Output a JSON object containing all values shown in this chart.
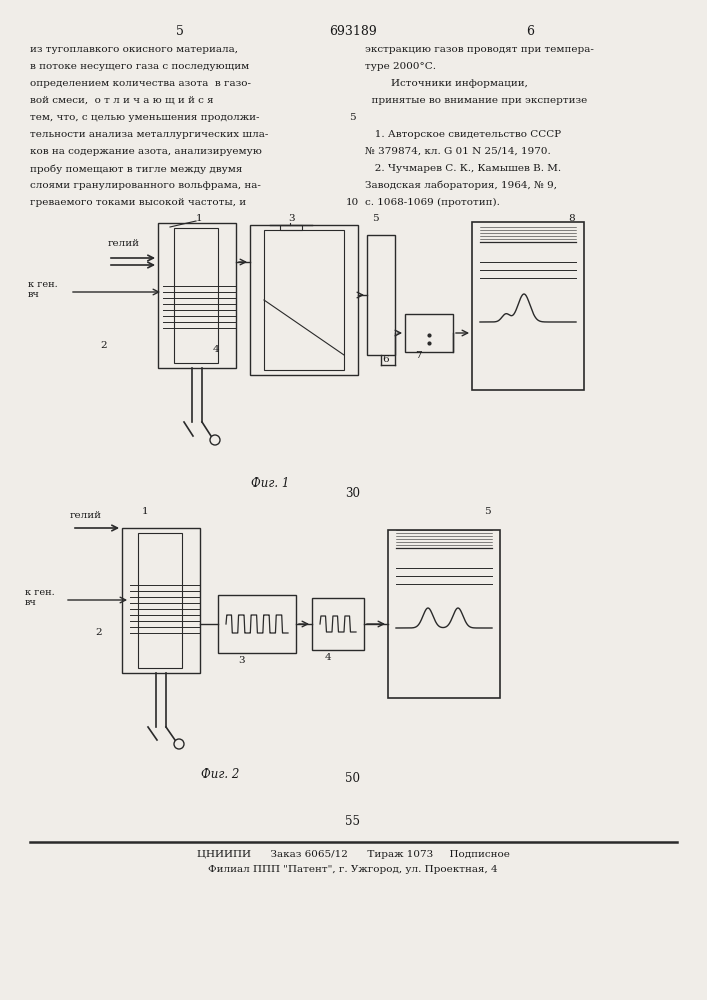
{
  "bg_color": "#f0ede8",
  "page_number_top_left": "5",
  "page_title_center": "693189",
  "page_number_top_right": "6",
  "left_col_text": [
    "из тугоплавкого окисного материала,",
    "в потоке несущего газа с последующим",
    "определением количества азота  в газо-",
    "вой смеси,  о т л и ч а ю щ и й с я",
    "тем, что, с целью уменьшения продолжи-",
    "тельности анализа металлургических шла-",
    "ков на содержание азота, анализируемую",
    "пробу помещают в тигле между двумя",
    "слоями гранулированного вольфрама, на-",
    "греваемого токами высокой частоты, и"
  ],
  "right_col_text": [
    "экстракцию газов проводят при темпера-",
    "туре 2000°С.",
    "        Источники информации,",
    "  принятые во внимание при экспертизе",
    "",
    "   1. Авторское свидетельство СССР",
    "№ 379874, кл. G 01 N 25/14, 1970.",
    "   2. Чучмарев С. К., Камышев В. М.",
    "Заводская лаборатория, 1964, № 9,",
    "с. 1068-1069 (прототип)."
  ],
  "line_numbers_left": [
    "",
    "",
    "",
    "",
    "5",
    "",
    "",
    "",
    "",
    "10"
  ],
  "fig1_caption": "Фиг. 1",
  "fig2_caption": "Фиг. 2",
  "page_num_30": "30",
  "page_num_50": "50",
  "page_num_55": "55",
  "footer_line1": "ЦНИИПИ      Заказ 6065/12      Тираж 1073     Подписное",
  "footer_line2": "Филиал ППП \"Патент\", г. Ужгород, ул. Проектная, 4",
  "text_color": "#1a1a1a",
  "line_color": "#2a2a2a"
}
